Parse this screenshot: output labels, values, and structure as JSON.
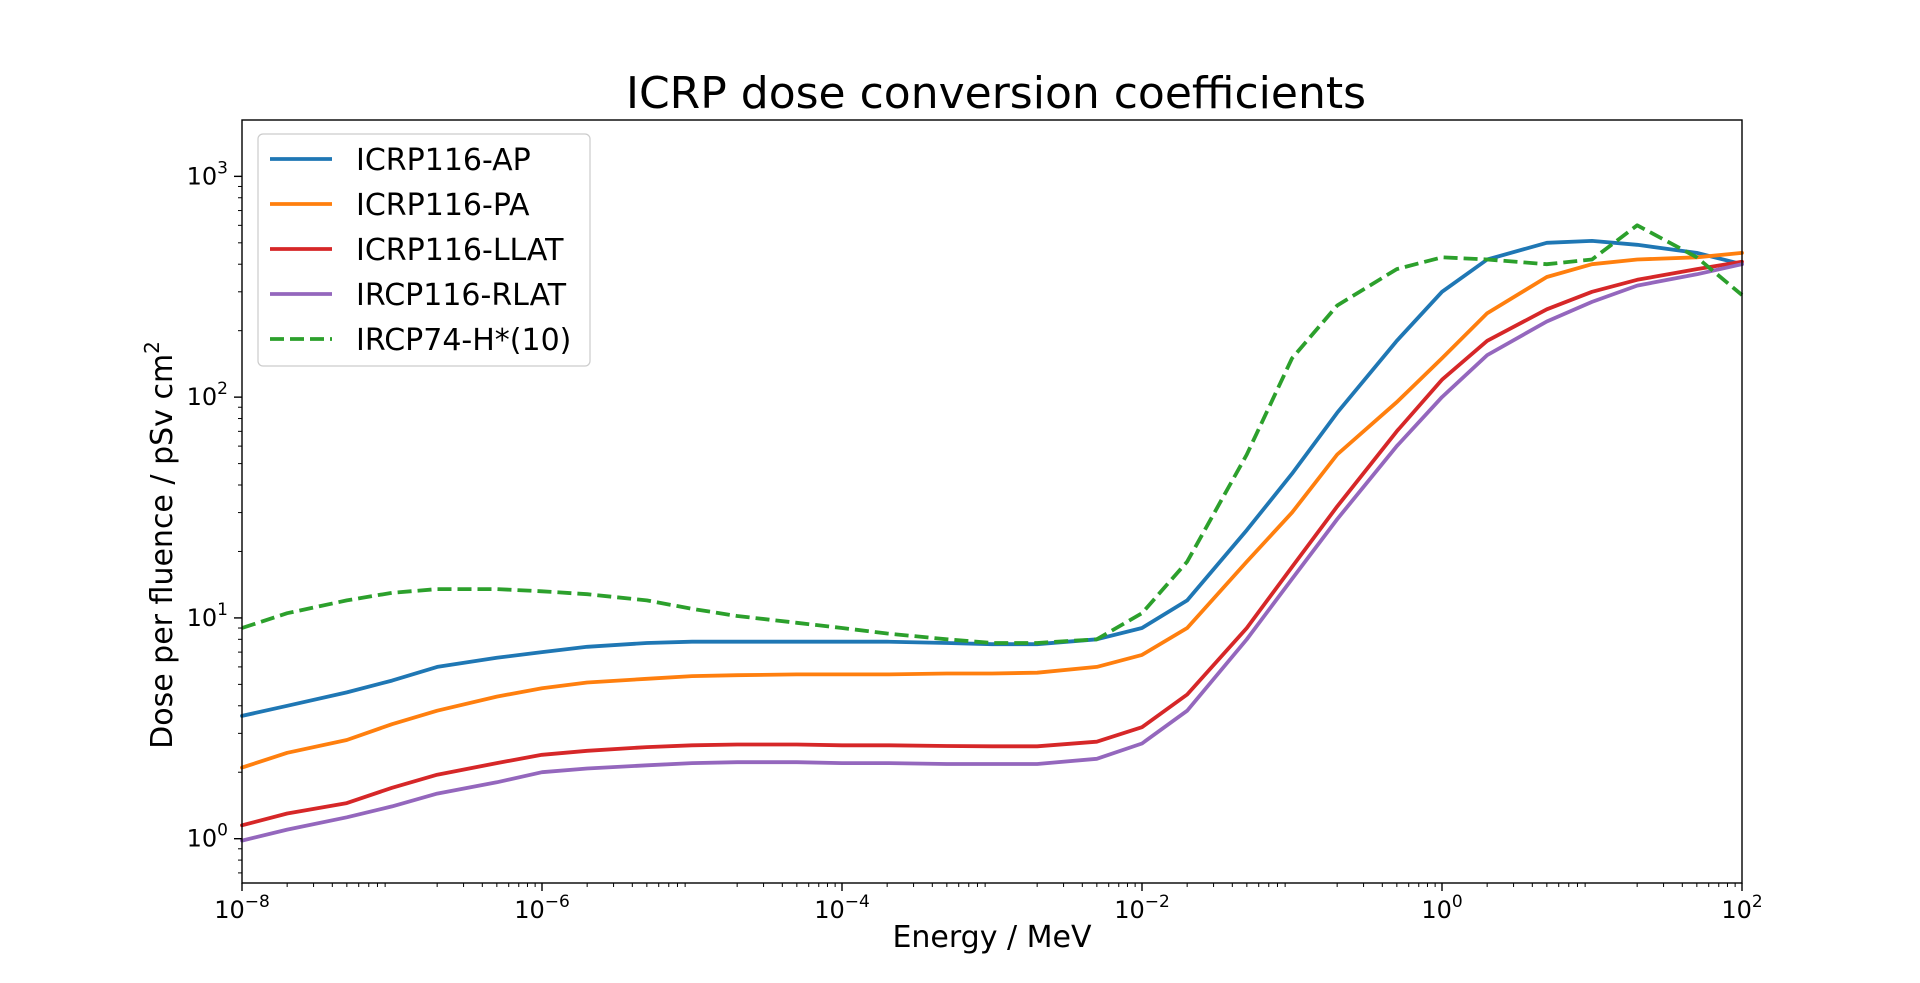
{
  "chart_data": {
    "type": "line",
    "title": "ICRP dose conversion coefficients",
    "xlabel": "Energy / MeV",
    "ylabel_text": "Dose per fluence / pSv cm",
    "ylabel_sup": "2",
    "xscale": "log",
    "yscale": "log",
    "xlim": [
      1e-08,
      100
    ],
    "ylim": [
      0.63,
      1800
    ],
    "xticks": [
      {
        "base": "10",
        "exp": "−8",
        "value": 1e-08
      },
      {
        "base": "10",
        "exp": "−6",
        "value": 1e-06
      },
      {
        "base": "10",
        "exp": "−4",
        "value": 0.0001
      },
      {
        "base": "10",
        "exp": "−2",
        "value": 0.01
      },
      {
        "base": "10",
        "exp": "0",
        "value": 1
      },
      {
        "base": "10",
        "exp": "2",
        "value": 100
      }
    ],
    "yticks": [
      {
        "base": "10",
        "exp": "0",
        "value": 1
      },
      {
        "base": "10",
        "exp": "1",
        "value": 10
      },
      {
        "base": "10",
        "exp": "2",
        "value": 100
      },
      {
        "base": "10",
        "exp": "3",
        "value": 1000
      }
    ],
    "grid": false,
    "legend_position": "top-left",
    "x": [
      1e-08,
      2e-08,
      5e-08,
      1e-07,
      2e-07,
      5e-07,
      1e-06,
      2e-06,
      5e-06,
      1e-05,
      2e-05,
      5e-05,
      0.0001,
      0.0002,
      0.0005,
      0.001,
      0.002,
      0.005,
      0.01,
      0.02,
      0.05,
      0.1,
      0.2,
      0.5,
      1,
      2,
      5,
      10,
      20,
      50,
      100
    ],
    "series": [
      {
        "name": "ICRP116-AP",
        "color": "#1f77b4",
        "dashed": false,
        "values": [
          3.6,
          4.0,
          4.6,
          5.2,
          6.0,
          6.6,
          7.0,
          7.4,
          7.7,
          7.8,
          7.8,
          7.8,
          7.8,
          7.8,
          7.7,
          7.6,
          7.6,
          8.0,
          9.0,
          12.0,
          25.0,
          45.0,
          85.0,
          180.0,
          300.0,
          420.0,
          500.0,
          510.0,
          490.0,
          450.0,
          400.0
        ]
      },
      {
        "name": "ICRP116-PA",
        "color": "#ff7f0e",
        "dashed": false,
        "values": [
          2.1,
          2.45,
          2.8,
          3.3,
          3.8,
          4.4,
          4.8,
          5.1,
          5.3,
          5.45,
          5.5,
          5.55,
          5.55,
          5.55,
          5.6,
          5.6,
          5.65,
          6.0,
          6.8,
          9.0,
          18.0,
          30.0,
          55.0,
          95.0,
          150.0,
          240.0,
          350.0,
          400.0,
          420.0,
          430.0,
          450.0
        ]
      },
      {
        "name": "ICRP116-LLAT",
        "color": "#d62728",
        "dashed": false,
        "values": [
          1.15,
          1.3,
          1.45,
          1.7,
          1.95,
          2.2,
          2.4,
          2.5,
          2.6,
          2.65,
          2.67,
          2.67,
          2.65,
          2.65,
          2.63,
          2.62,
          2.62,
          2.75,
          3.2,
          4.5,
          9.0,
          17.0,
          32.0,
          70.0,
          120.0,
          180.0,
          250.0,
          300.0,
          340.0,
          380.0,
          410.0
        ]
      },
      {
        "name": "IRCP116-RLAT",
        "color": "#9467bd",
        "dashed": false,
        "values": [
          0.98,
          1.1,
          1.25,
          1.4,
          1.6,
          1.8,
          2.0,
          2.08,
          2.15,
          2.2,
          2.22,
          2.22,
          2.2,
          2.2,
          2.18,
          2.18,
          2.18,
          2.3,
          2.7,
          3.8,
          8.0,
          15.0,
          28.0,
          60.0,
          100.0,
          155.0,
          220.0,
          270.0,
          320.0,
          360.0,
          400.0
        ]
      },
      {
        "name": "IRCP74-H*(10)",
        "color": "#2ca02c",
        "dashed": true,
        "values": [
          9.0,
          10.5,
          12.0,
          13.0,
          13.5,
          13.5,
          13.2,
          12.8,
          12.0,
          11.0,
          10.2,
          9.5,
          9.0,
          8.5,
          8.0,
          7.7,
          7.7,
          8.0,
          10.5,
          18.0,
          55.0,
          150.0,
          260.0,
          380.0,
          430.0,
          420.0,
          400.0,
          420.0,
          600.0,
          430.0,
          290.0
        ]
      }
    ]
  }
}
